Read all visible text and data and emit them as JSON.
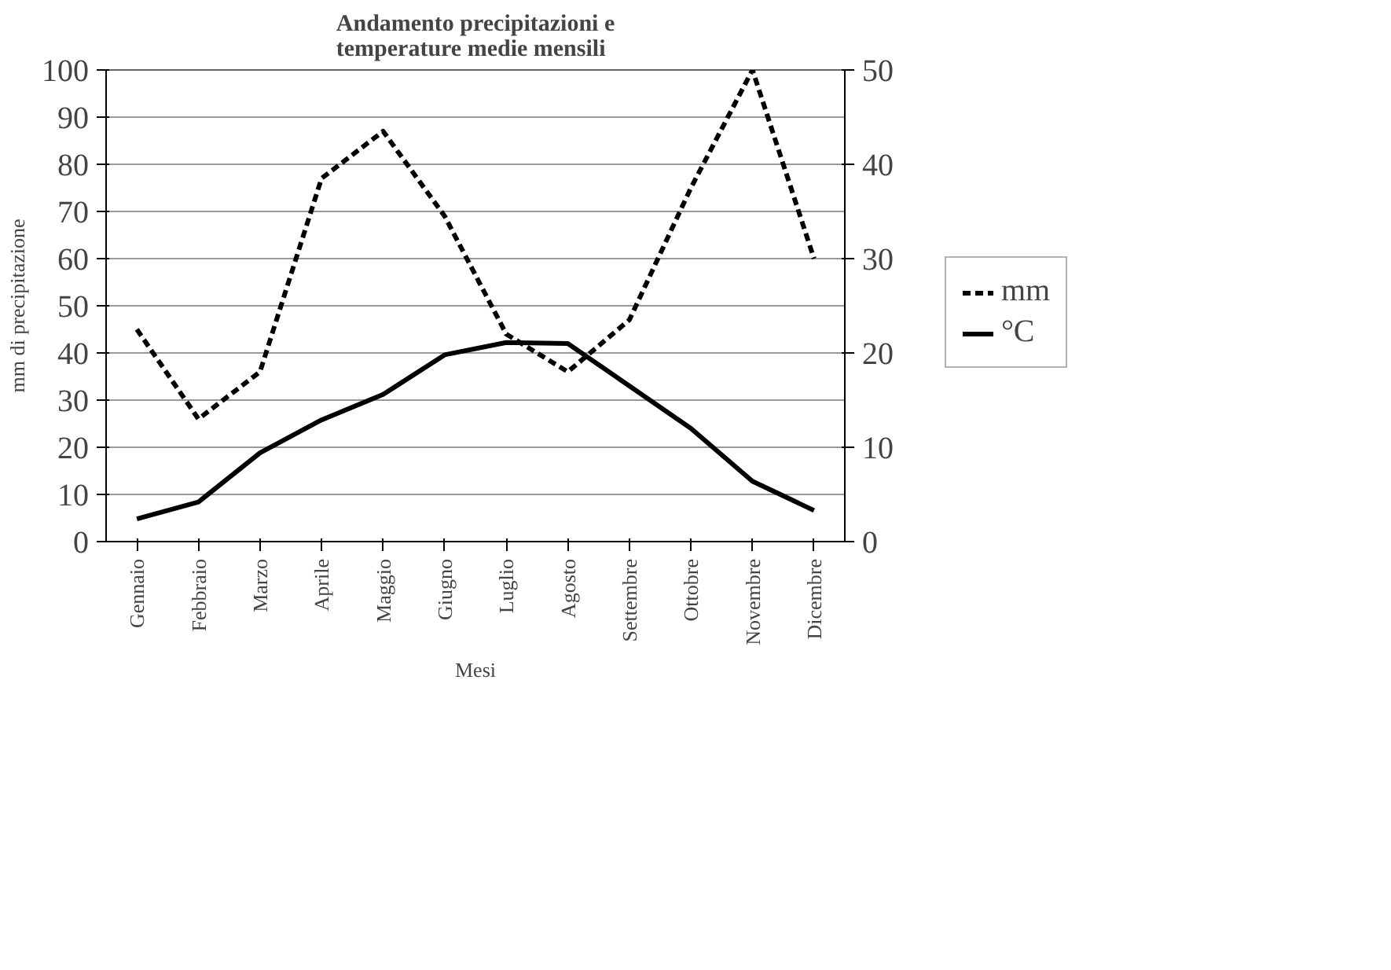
{
  "chart_data": {
    "type": "line",
    "title": "Andamento precipitazioni e\ntemperature medie mensili",
    "xlabel": "Mesi",
    "ylabel": "mm di precipitazione",
    "categories": [
      "Gennaio",
      "Febbraio",
      "Marzo",
      "Aprile",
      "Maggio",
      "Giugno",
      "Luglio",
      "Agosto",
      "Settembre",
      "Ottobre",
      "Novembre",
      "Dicembre"
    ],
    "series": [
      {
        "name": "mm",
        "color": "#000000",
        "line_style": "dashed",
        "values": [
          45,
          26,
          36,
          77,
          87,
          69,
          44,
          36,
          47,
          75,
          100,
          60
        ]
      },
      {
        "name": "°C",
        "color": "#000000",
        "line_style": "solid",
        "axis": "y2",
        "values": [
          2.4,
          4.2,
          9.4,
          12.9,
          15.6,
          19.8,
          21.1,
          21.0,
          16.5,
          12.0,
          6.4,
          3.3
        ]
      }
    ],
    "ylim": [
      0,
      100
    ],
    "yticks": [
      0,
      10,
      20,
      30,
      40,
      50,
      60,
      70,
      80,
      90,
      100
    ],
    "y2lim": [
      0,
      50
    ],
    "y2ticks": [
      0,
      10,
      20,
      30,
      40,
      50
    ],
    "grid": "y",
    "legend": "right"
  }
}
